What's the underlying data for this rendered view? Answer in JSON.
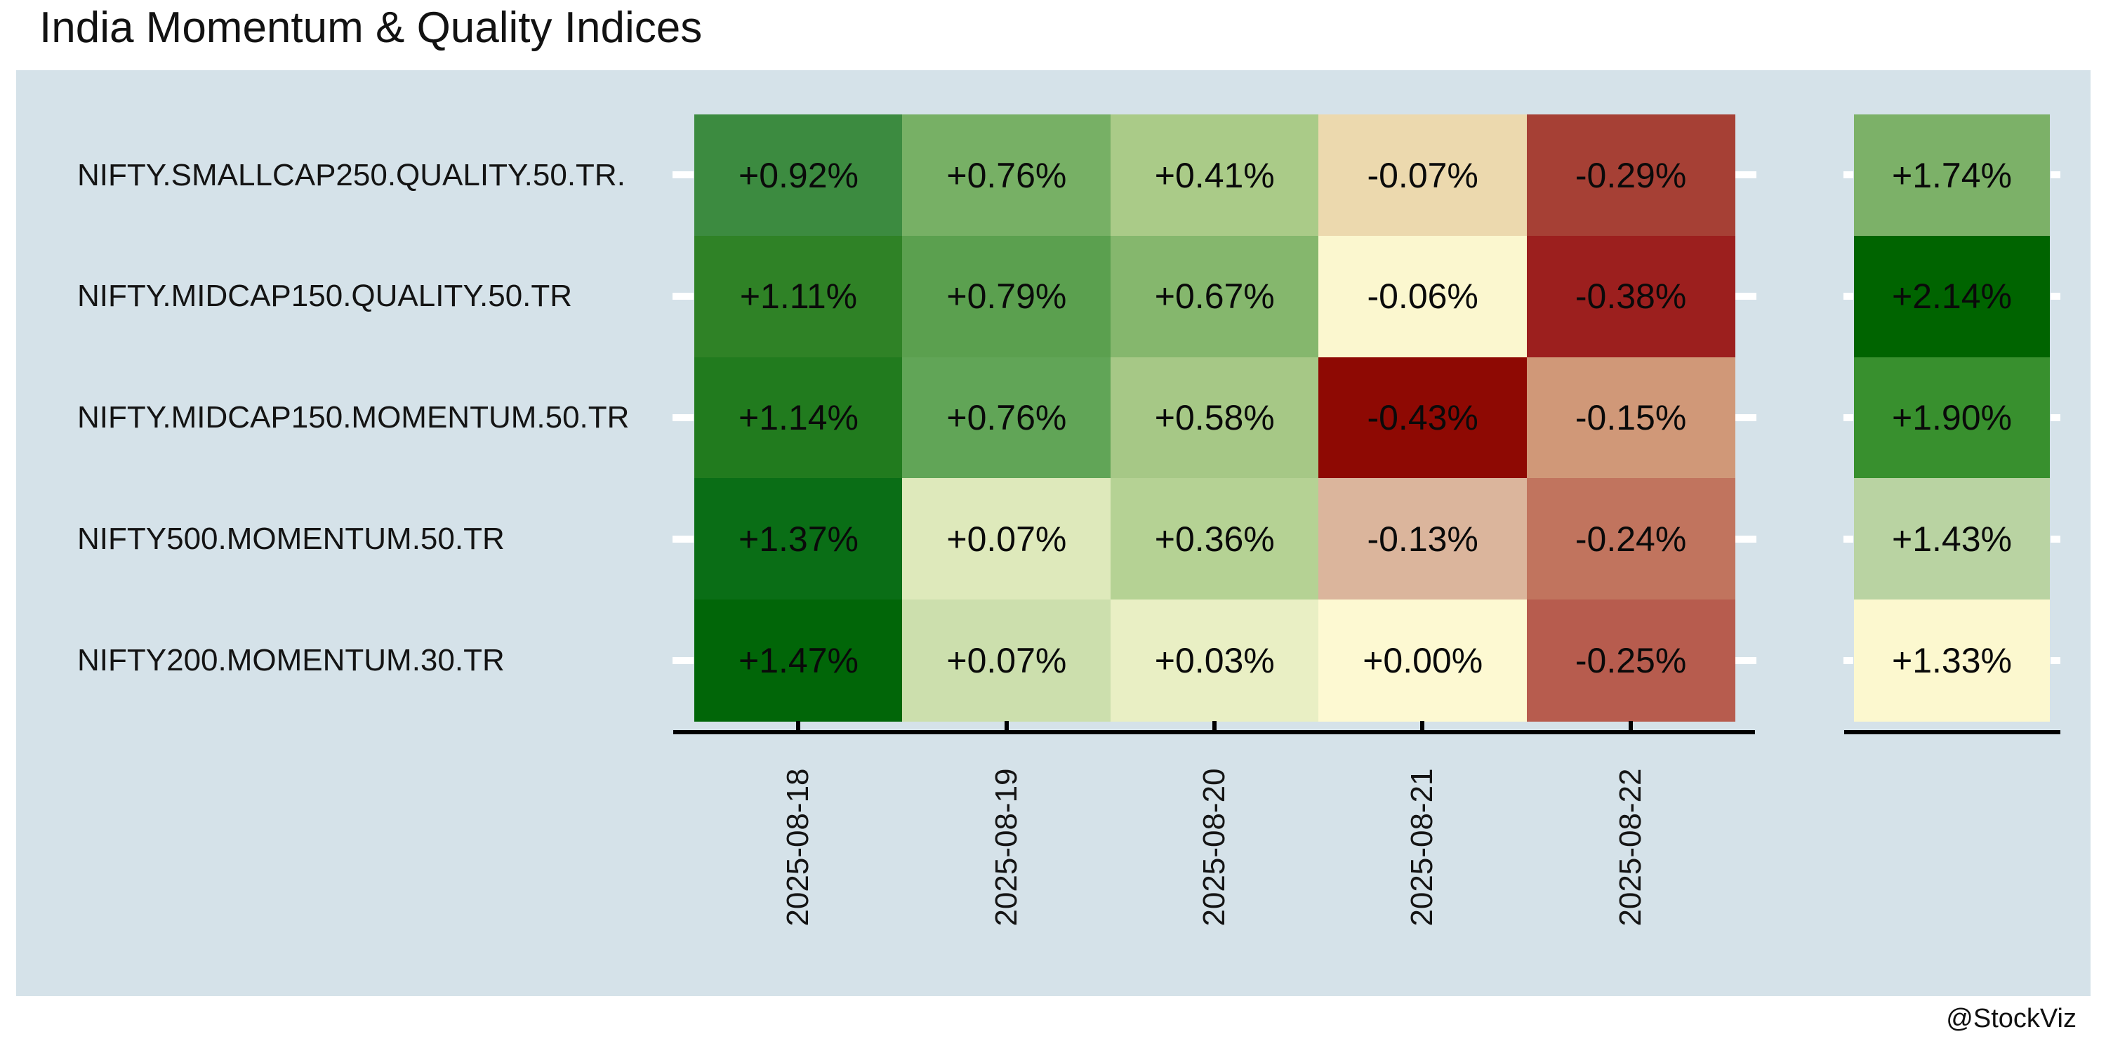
{
  "title": "India Momentum & Quality Indices",
  "credit": "@StockViz",
  "colors": {
    "page_bg": "#ffffff",
    "panel_bg": "#d5e2e9",
    "axis": "#000000",
    "tick_white": "#ffffff",
    "text": "#141414"
  },
  "chart_data": {
    "type": "heatmap",
    "title": "India Momentum & Quality Indices",
    "legend_position": "none",
    "grid": false,
    "x_tick_rotation": 90,
    "rows": [
      "NIFTY.SMALLCAP250.QUALITY.50.TR.",
      "NIFTY.MIDCAP150.QUALITY.50.TR",
      "NIFTY.MIDCAP150.MOMENTUM.50.TR",
      "NIFTY500.MOMENTUM.50.TR",
      "NIFTY200.MOMENTUM.30.TR"
    ],
    "columns": [
      "2025-08-18",
      "2025-08-19",
      "2025-08-20",
      "2025-08-21",
      "2025-08-22"
    ],
    "values": [
      [
        0.92,
        0.76,
        0.41,
        -0.07,
        -0.29
      ],
      [
        1.11,
        0.79,
        0.67,
        -0.06,
        -0.38
      ],
      [
        1.14,
        0.76,
        0.58,
        -0.43,
        -0.15
      ],
      [
        1.37,
        0.07,
        0.36,
        -0.13,
        -0.24
      ],
      [
        1.47,
        0.07,
        0.03,
        0.0,
        -0.25
      ]
    ],
    "cell_labels": [
      [
        "+0.92%",
        "+0.76%",
        "+0.41%",
        "-0.07%",
        "-0.29%"
      ],
      [
        "+1.11%",
        "+0.79%",
        "+0.67%",
        "-0.06%",
        "-0.38%"
      ],
      [
        "+1.14%",
        "+0.76%",
        "+0.58%",
        "-0.43%",
        "-0.15%"
      ],
      [
        "+1.37%",
        "+0.07%",
        "+0.36%",
        "-0.13%",
        "-0.24%"
      ],
      [
        "+1.47%",
        "+0.07%",
        "+0.03%",
        "+0.00%",
        "-0.25%"
      ]
    ],
    "cell_colors": [
      [
        "#3c8b40",
        "#77b065",
        "#aacb88",
        "#ecd9ae",
        "#a64035"
      ],
      [
        "#2f8226",
        "#5ba04f",
        "#85b76d",
        "#fbf7cf",
        "#9c1f1e"
      ],
      [
        "#217b1e",
        "#61a557",
        "#a6c886",
        "#8e0903",
        "#d09878"
      ],
      [
        "#0a6e16",
        "#dee9bb",
        "#b5d294",
        "#dbb59c",
        "#c1745e"
      ],
      [
        "#016608",
        "#ccdfad",
        "#e9efc4",
        "#fdf9d2",
        "#b75c4e"
      ]
    ],
    "summary_values": [
      1.74,
      2.14,
      1.9,
      1.43,
      1.33
    ],
    "summary_labels": [
      "+1.74%",
      "+2.14%",
      "+1.90%",
      "+1.43%",
      "+1.33%"
    ],
    "summary_colors": [
      "#7cb168",
      "#006400",
      "#38902e",
      "#b9d3a2",
      "#fcf8cf"
    ]
  }
}
